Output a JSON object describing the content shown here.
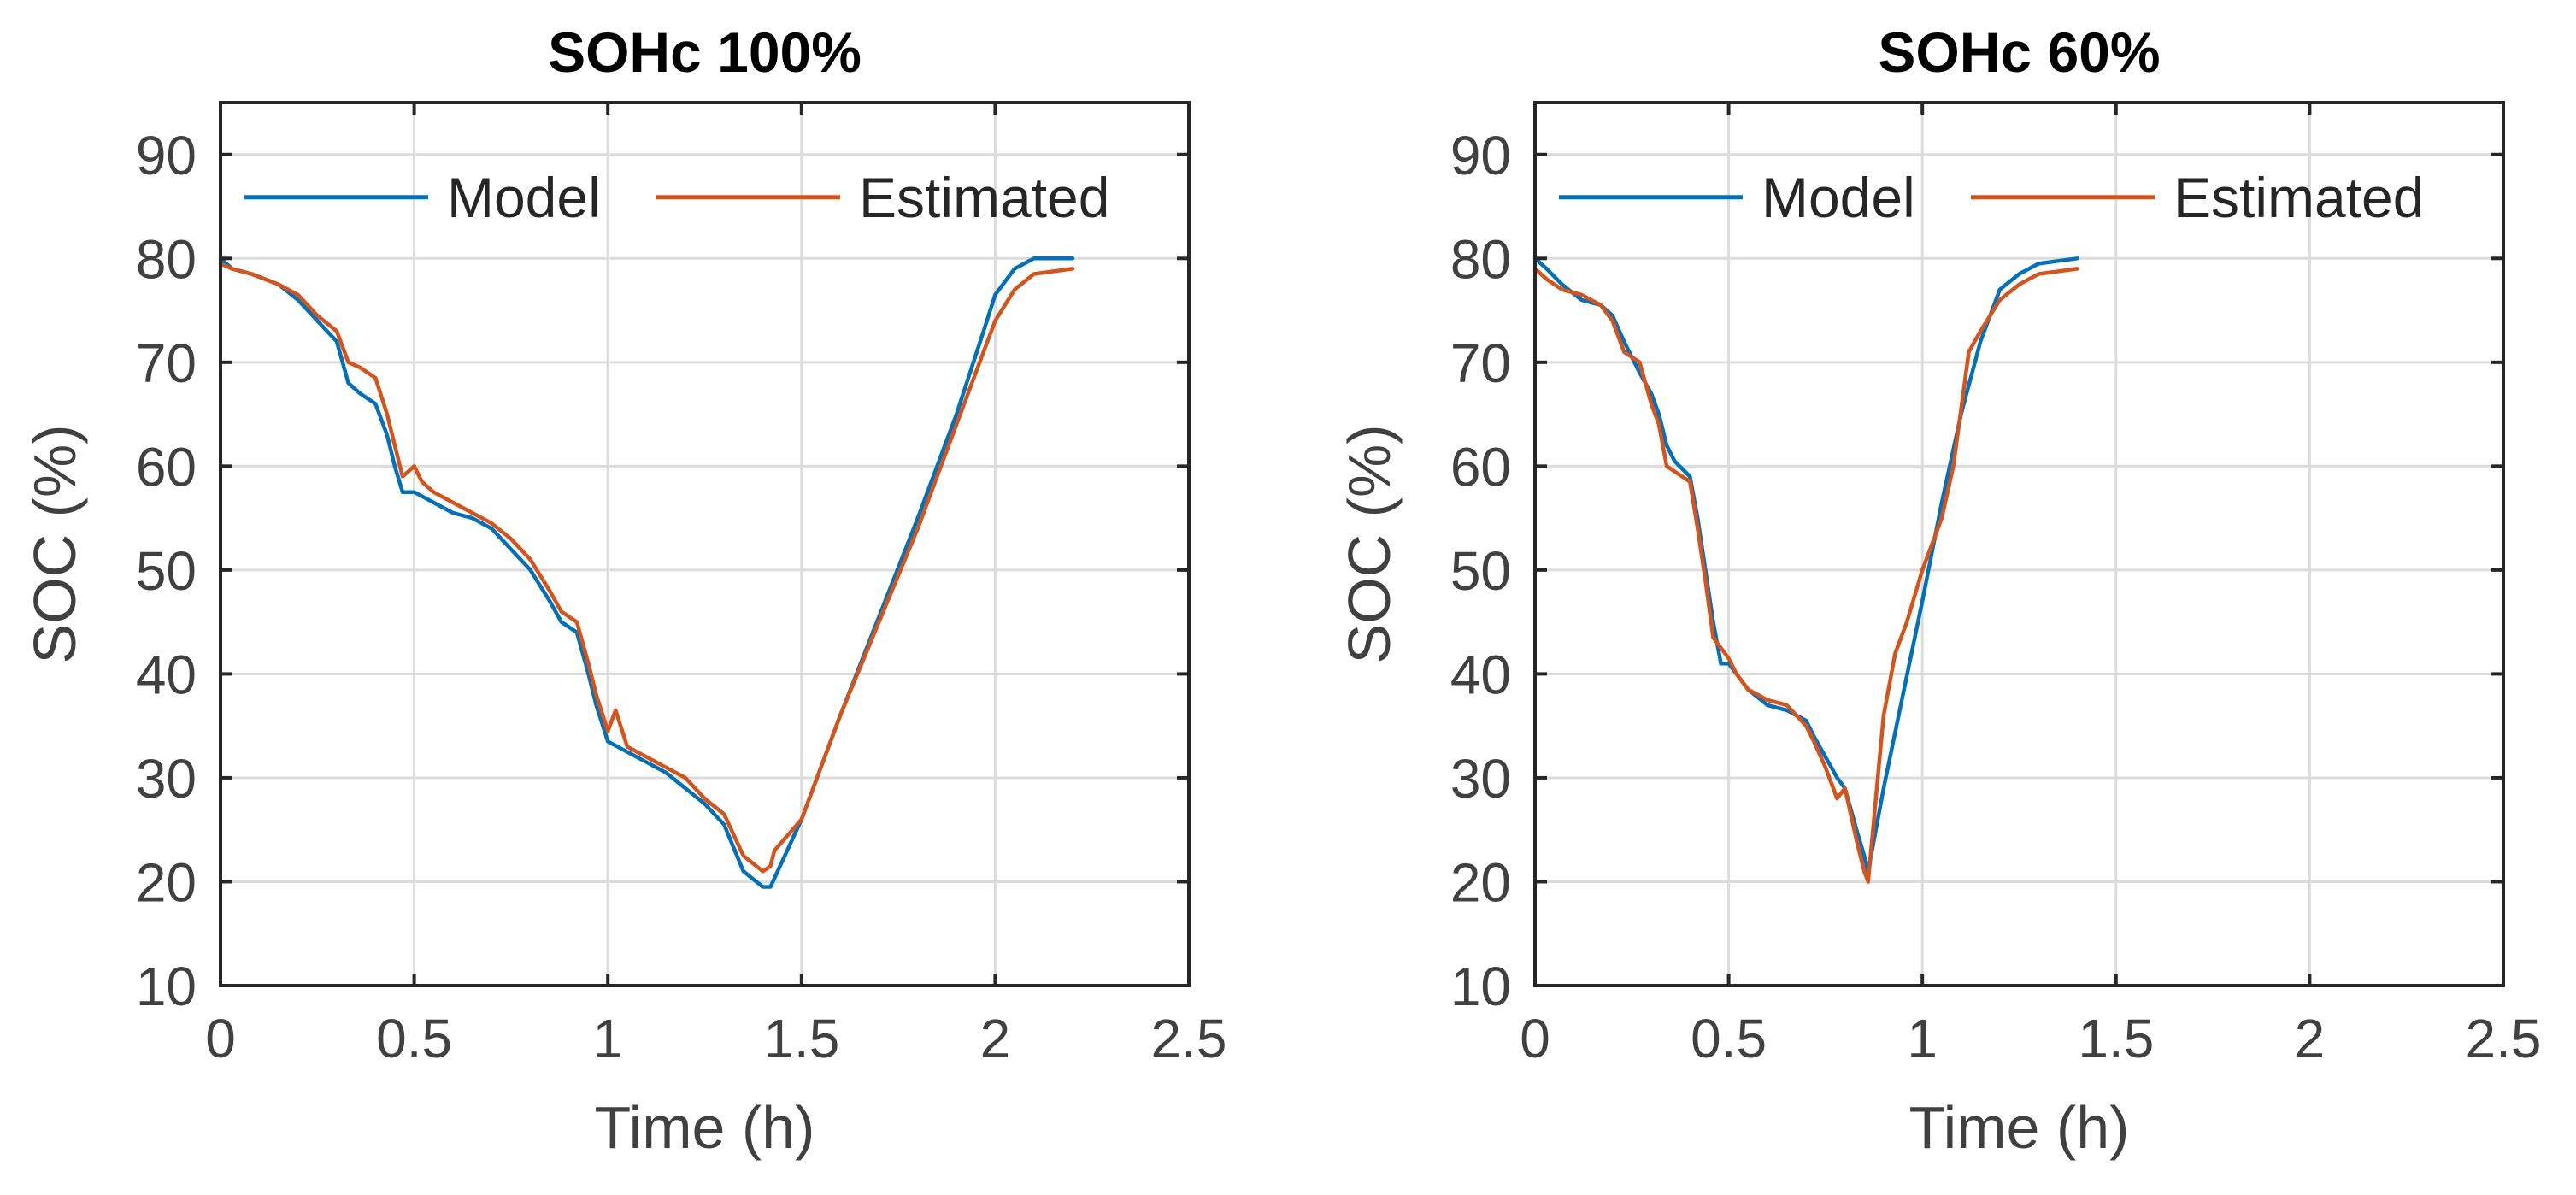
{
  "chart_data": [
    {
      "type": "line",
      "title": "SOHc 100%",
      "xlabel": "Time (h)",
      "ylabel": "SOC (%)",
      "xlim": [
        0,
        2.5
      ],
      "ylim": [
        10,
        95
      ],
      "xticks": [
        0,
        0.5,
        1,
        1.5,
        2,
        2.5
      ],
      "xtick_labels": [
        "0",
        "0.5",
        "1",
        "1.5",
        "2",
        "2.5"
      ],
      "yticks": [
        10,
        20,
        30,
        40,
        50,
        60,
        70,
        80,
        90
      ],
      "ytick_labels": [
        "10",
        "20",
        "30",
        "40",
        "50",
        "60",
        "70",
        "80",
        "90"
      ],
      "grid": true,
      "legend": {
        "position": "top",
        "orientation": "horizontal",
        "entries": [
          "Model",
          "Estimated"
        ]
      },
      "series": [
        {
          "name": "Model",
          "color": "#0072BD",
          "x": [
            0,
            0.03,
            0.08,
            0.15,
            0.2,
            0.25,
            0.3,
            0.33,
            0.36,
            0.4,
            0.43,
            0.45,
            0.47,
            0.5,
            0.55,
            0.6,
            0.65,
            0.7,
            0.75,
            0.8,
            0.85,
            0.88,
            0.92,
            0.95,
            0.97,
            1.0,
            1.05,
            1.1,
            1.15,
            1.2,
            1.25,
            1.3,
            1.35,
            1.4,
            1.42,
            1.5,
            1.6,
            1.7,
            1.8,
            1.9,
            1.97,
            2.0,
            2.05,
            2.1,
            2.2
          ],
          "y": [
            80,
            79,
            78.5,
            77.5,
            76,
            74,
            72,
            68,
            67,
            66,
            63,
            60,
            57.5,
            57.5,
            56.5,
            55.5,
            55,
            54,
            52,
            50,
            47,
            45,
            44,
            40,
            37,
            33.5,
            32.5,
            31.5,
            30.5,
            29,
            27.5,
            25.5,
            21,
            19.5,
            19.5,
            26,
            36,
            45.5,
            55,
            65,
            73,
            76.5,
            79,
            80,
            80
          ]
        },
        {
          "name": "Estimated",
          "color": "#D95319",
          "x": [
            0,
            0.03,
            0.08,
            0.15,
            0.2,
            0.25,
            0.3,
            0.33,
            0.36,
            0.4,
            0.43,
            0.45,
            0.47,
            0.5,
            0.52,
            0.55,
            0.6,
            0.65,
            0.7,
            0.75,
            0.8,
            0.85,
            0.88,
            0.92,
            0.95,
            0.97,
            1.0,
            1.02,
            1.05,
            1.1,
            1.15,
            1.2,
            1.25,
            1.3,
            1.35,
            1.4,
            1.42,
            1.43,
            1.5,
            1.6,
            1.7,
            1.8,
            1.85,
            1.9,
            1.95,
            2.0,
            2.05,
            2.1,
            2.2
          ],
          "y": [
            79.5,
            79,
            78.5,
            77.5,
            76.5,
            74.5,
            73,
            70,
            69.5,
            68.5,
            65,
            62,
            59,
            60,
            58.5,
            57.5,
            56.5,
            55.5,
            54.5,
            53,
            51,
            48,
            46,
            45,
            41,
            38,
            34.5,
            36.5,
            33,
            32,
            31,
            30,
            28,
            26.5,
            22.5,
            21,
            21.5,
            23,
            26,
            36,
            45,
            54,
            59,
            64,
            69,
            74,
            77,
            78.5,
            79
          ]
        }
      ]
    },
    {
      "type": "line",
      "title": "SOHc 60%",
      "xlabel": "Time (h)",
      "ylabel": "SOC (%)",
      "xlim": [
        0,
        2.5
      ],
      "ylim": [
        10,
        95
      ],
      "xticks": [
        0,
        0.5,
        1,
        1.5,
        2,
        2.5
      ],
      "xtick_labels": [
        "0",
        "0.5",
        "1",
        "1.5",
        "2",
        "2.5"
      ],
      "yticks": [
        10,
        20,
        30,
        40,
        50,
        60,
        70,
        80,
        90
      ],
      "ytick_labels": [
        "10",
        "20",
        "30",
        "40",
        "50",
        "60",
        "70",
        "80",
        "90"
      ],
      "grid": true,
      "legend": {
        "position": "top",
        "orientation": "horizontal",
        "entries": [
          "Model",
          "Estimated"
        ]
      },
      "series": [
        {
          "name": "Model",
          "color": "#0072BD",
          "x": [
            0,
            0.03,
            0.07,
            0.12,
            0.17,
            0.2,
            0.23,
            0.27,
            0.3,
            0.32,
            0.34,
            0.36,
            0.4,
            0.42,
            0.44,
            0.46,
            0.48,
            0.5,
            0.55,
            0.6,
            0.65,
            0.7,
            0.72,
            0.75,
            0.78,
            0.8,
            0.83,
            0.85,
            0.86,
            0.9,
            0.95,
            1.0,
            1.05,
            1.1,
            1.15,
            1.2,
            1.25,
            1.3,
            1.4
          ],
          "y": [
            80,
            79,
            77.5,
            76,
            75.5,
            74.5,
            72,
            69,
            67,
            65,
            62,
            60.5,
            59,
            55,
            50,
            45,
            41,
            41,
            38.5,
            37,
            36.5,
            35.5,
            34,
            32,
            30,
            29,
            25,
            22.5,
            21,
            29,
            38,
            47,
            56.5,
            65,
            72,
            77,
            78.5,
            79.5,
            80
          ]
        },
        {
          "name": "Estimated",
          "color": "#D95319",
          "x": [
            0,
            0.03,
            0.07,
            0.12,
            0.17,
            0.2,
            0.23,
            0.27,
            0.3,
            0.32,
            0.34,
            0.36,
            0.4,
            0.42,
            0.44,
            0.46,
            0.48,
            0.5,
            0.52,
            0.55,
            0.6,
            0.65,
            0.7,
            0.72,
            0.75,
            0.78,
            0.8,
            0.83,
            0.85,
            0.86,
            0.88,
            0.9,
            0.93,
            0.96,
            1.0,
            1.05,
            1.08,
            1.12,
            1.15,
            1.2,
            1.25,
            1.3,
            1.4
          ],
          "y": [
            79,
            78,
            77,
            76.5,
            75.5,
            74,
            71,
            70,
            66,
            64,
            60,
            59.5,
            58.5,
            54,
            49,
            43.5,
            42.5,
            41.5,
            40,
            38.5,
            37.5,
            37,
            35,
            33.5,
            31,
            28,
            29,
            24,
            21,
            20,
            28,
            36,
            42,
            45,
            50,
            55,
            60,
            71,
            73,
            76,
            77.5,
            78.5,
            79
          ]
        }
      ]
    }
  ]
}
